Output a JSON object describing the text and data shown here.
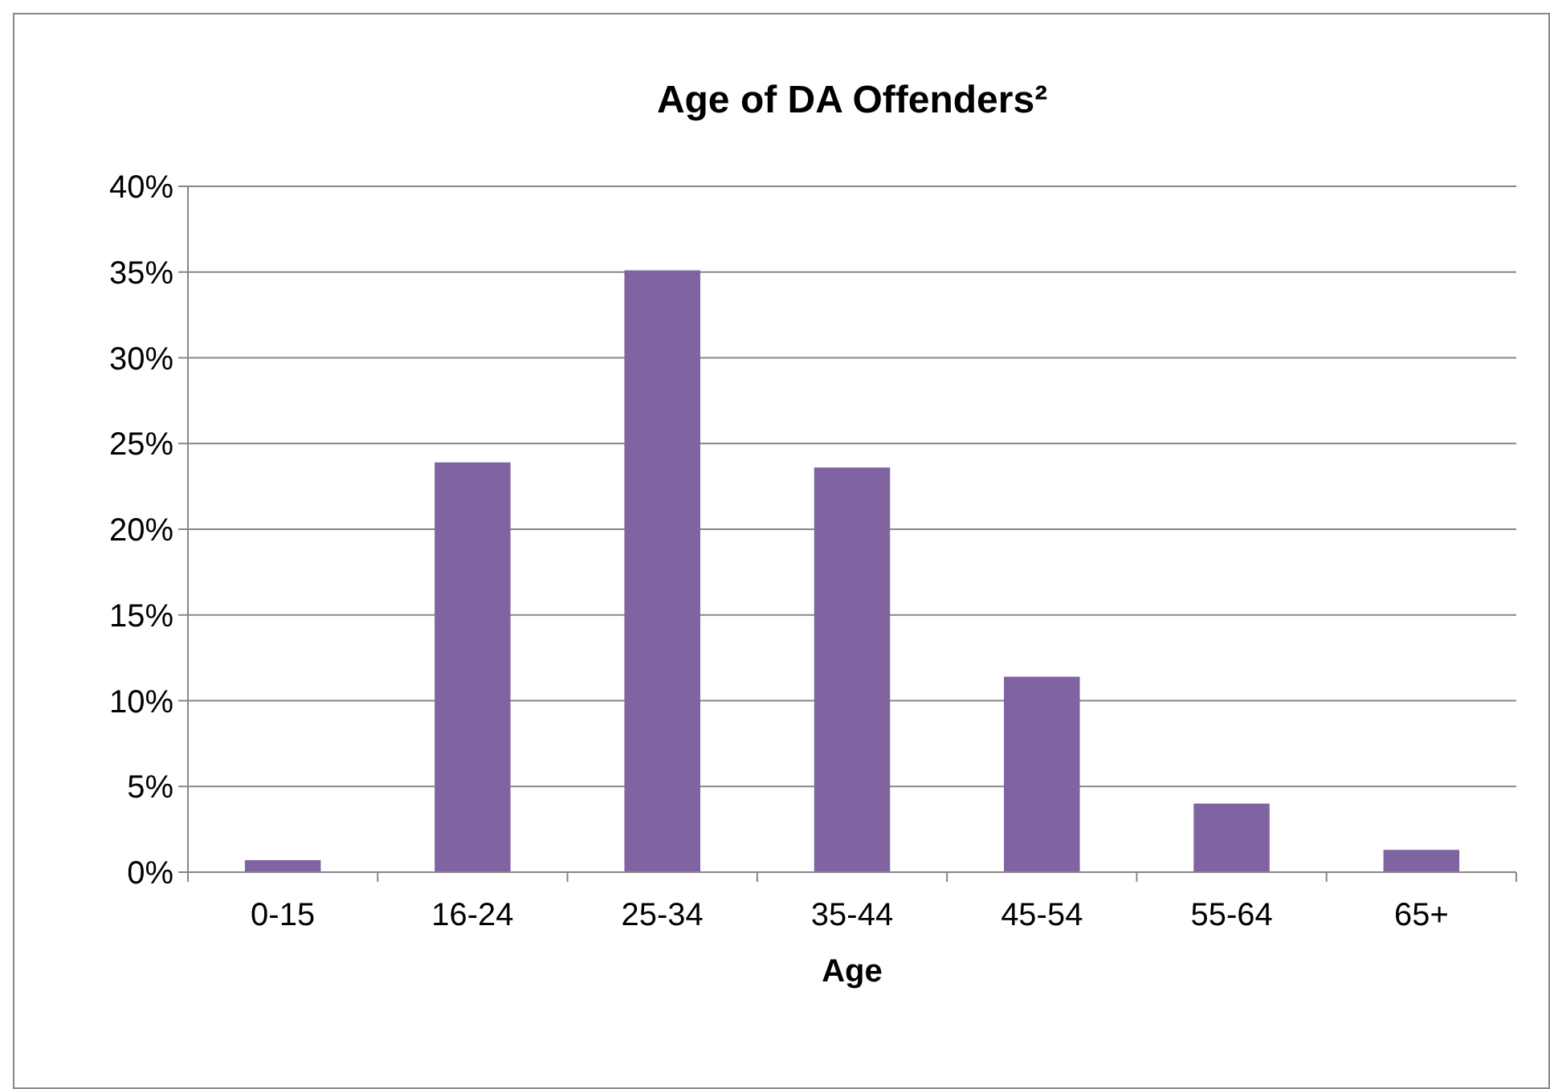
{
  "chart_data": {
    "type": "bar",
    "title": "Age of DA Offenders²",
    "xlabel": "Age",
    "categories": [
      "0-15",
      "16-24",
      "25-34",
      "35-44",
      "45-54",
      "55-64",
      "65+"
    ],
    "values": [
      0.7,
      23.9,
      35.1,
      23.6,
      11.4,
      4.0,
      1.3
    ],
    "color": "#8064a2",
    "ylim": [
      0,
      40
    ],
    "yticks": [
      {
        "value": 0,
        "label": "0%"
      },
      {
        "value": 5,
        "label": "5%"
      },
      {
        "value": 10,
        "label": "10%"
      },
      {
        "value": 15,
        "label": "15%"
      },
      {
        "value": 20,
        "label": "20%"
      },
      {
        "value": 25,
        "label": "25%"
      },
      {
        "value": 30,
        "label": "30%"
      },
      {
        "value": 35,
        "label": "35%"
      },
      {
        "value": 40,
        "label": "40%"
      }
    ],
    "grid": "y"
  }
}
